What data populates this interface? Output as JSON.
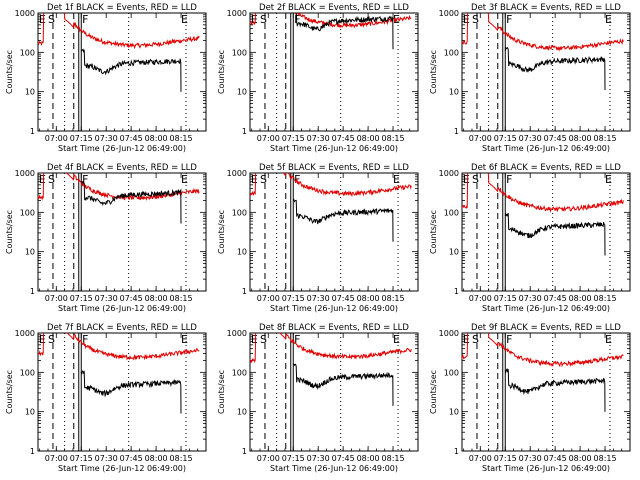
{
  "figure": {
    "ylabel": "Counts/sec",
    "xlabel": "Start Time (26-Jun-12 06:49:00)",
    "x_tick_labels": [
      "07:00",
      "07:15",
      "07:30",
      "07:45",
      "08:00",
      "08:15"
    ],
    "y_tick_labels": [
      "1",
      "10",
      "100",
      "1000"
    ],
    "marker_labels": [
      "E",
      "S",
      "F",
      "E"
    ],
    "colors": {
      "events": "#000000",
      "lld": "#e00000"
    }
  },
  "chart_data": [
    {
      "type": "line",
      "title": "Det 1f BLACK = Events, RED = LLD",
      "events_level": 50,
      "lld_level": 200,
      "lld_pre": 170,
      "events_gap": true,
      "series": [
        {
          "name": "Events",
          "color": "#000000"
        },
        {
          "name": "LLD",
          "color": "#e00000"
        }
      ],
      "ylim": [
        1,
        1000
      ],
      "yscale": "log",
      "xlim": [
        "06:49",
        "08:30"
      ]
    },
    {
      "type": "line",
      "title": "Det 2f BLACK = Events, RED = LLD",
      "events_level": 600,
      "lld_level": 650,
      "lld_pre": 550,
      "events_gap": true,
      "series": [
        {
          "name": "Events",
          "color": "#000000"
        },
        {
          "name": "LLD",
          "color": "#e00000"
        }
      ],
      "ylim": [
        1,
        1000
      ],
      "yscale": "log",
      "xlim": [
        "06:49",
        "08:30"
      ]
    },
    {
      "type": "line",
      "title": "Det 3f BLACK = Events, RED = LLD",
      "events_level": 55,
      "lld_level": 170,
      "lld_pre": 180,
      "events_gap": true,
      "series": [
        {
          "name": "Events",
          "color": "#000000"
        },
        {
          "name": "LLD",
          "color": "#e00000"
        }
      ],
      "ylim": [
        1,
        1000
      ],
      "yscale": "log",
      "xlim": [
        "06:49",
        "08:30"
      ]
    },
    {
      "type": "line",
      "title": "Det 4f BLACK = Events, RED = LLD",
      "events_level": 260,
      "lld_level": 310,
      "lld_pre": 240,
      "events_gap": true,
      "series": [
        {
          "name": "Events",
          "color": "#000000"
        },
        {
          "name": "LLD",
          "color": "#e00000"
        }
      ],
      "ylim": [
        1,
        1000
      ],
      "yscale": "log",
      "xlim": [
        "06:49",
        "08:30"
      ]
    },
    {
      "type": "line",
      "title": "Det 5f BLACK = Events, RED = LLD",
      "events_level": 90,
      "lld_level": 400,
      "lld_pre": 300,
      "events_gap": true,
      "series": [
        {
          "name": "Events",
          "color": "#000000"
        },
        {
          "name": "LLD",
          "color": "#e00000"
        }
      ],
      "ylim": [
        1,
        1000
      ],
      "yscale": "log",
      "xlim": [
        "06:49",
        "08:30"
      ]
    },
    {
      "type": "line",
      "title": "Det 6f BLACK = Events, RED = LLD",
      "events_level": 40,
      "lld_level": 160,
      "lld_pre": 140,
      "events_gap": true,
      "series": [
        {
          "name": "Events",
          "color": "#000000"
        },
        {
          "name": "LLD",
          "color": "#e00000"
        }
      ],
      "ylim": [
        1,
        1000
      ],
      "yscale": "log",
      "xlim": [
        "06:49",
        "08:30"
      ]
    },
    {
      "type": "line",
      "title": "Det 7f BLACK = Events, RED = LLD",
      "events_level": 45,
      "lld_level": 320,
      "lld_pre": 300,
      "events_gap": true,
      "series": [
        {
          "name": "Events",
          "color": "#000000"
        },
        {
          "name": "LLD",
          "color": "#e00000"
        }
      ],
      "ylim": [
        1,
        1000
      ],
      "yscale": "log",
      "xlim": [
        "06:49",
        "08:30"
      ]
    },
    {
      "type": "line",
      "title": "Det 8f BLACK = Events, RED = LLD",
      "events_level": 70,
      "lld_level": 330,
      "lld_pre": 200,
      "events_gap": true,
      "series": [
        {
          "name": "Events",
          "color": "#000000"
        },
        {
          "name": "LLD",
          "color": "#e00000"
        }
      ],
      "ylim": [
        1,
        1000
      ],
      "yscale": "log",
      "xlim": [
        "06:49",
        "08:30"
      ]
    },
    {
      "type": "line",
      "title": "Det 9f BLACK = Events, RED = LLD",
      "events_level": 50,
      "lld_level": 220,
      "lld_pre": 250,
      "events_gap": true,
      "series": [
        {
          "name": "Events",
          "color": "#000000"
        },
        {
          "name": "LLD",
          "color": "#e00000"
        }
      ],
      "ylim": [
        1,
        1000
      ],
      "yscale": "log",
      "xlim": [
        "06:49",
        "08:30"
      ]
    }
  ]
}
